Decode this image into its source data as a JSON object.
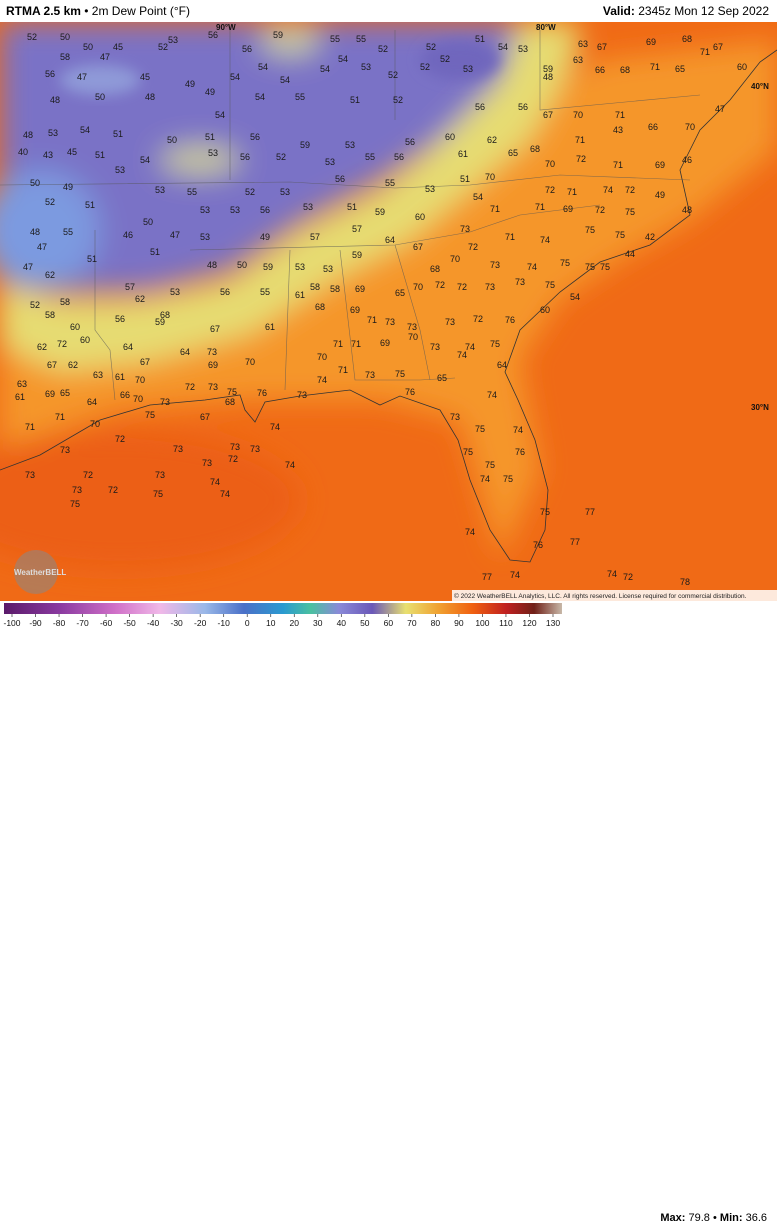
{
  "header": {
    "model": "RTMA 2.5 km",
    "separator": "•",
    "field": "2m Dew Point (°F)",
    "valid_label": "Valid:",
    "valid_time": "2345z Mon 12 Sep 2022"
  },
  "stats": {
    "max_label": "Max:",
    "max": 79.8,
    "min_label": "Min:",
    "min": 36.6
  },
  "map_labels": {
    "lon_90": "90°W",
    "lon_80": "80°W",
    "lat_40": "40°N",
    "lat_30": "30°N"
  },
  "logo": "WeatherBELL",
  "copyright": "© 2022 WeatherBELL Analytics, LLC. All rights reserved. License required for commercial distribution.",
  "colorbar": {
    "lim": [
      -100,
      130
    ],
    "ticks": [
      -100,
      -90,
      -80,
      -70,
      -60,
      -50,
      -40,
      -30,
      -20,
      -10,
      0,
      10,
      20,
      30,
      40,
      50,
      60,
      70,
      80,
      90,
      100,
      110,
      120,
      130
    ]
  },
  "stations": [
    52,
    50,
    50,
    45,
    52,
    53,
    56,
    56,
    59,
    55,
    55,
    52,
    52,
    51,
    54,
    53,
    63,
    67,
    69,
    68,
    67,
    58,
    47,
    56,
    47,
    45,
    49,
    49,
    54,
    54,
    54,
    54,
    54,
    53,
    52,
    52,
    52,
    53,
    59,
    63,
    66,
    68,
    71,
    65,
    71,
    60,
    48,
    48,
    50,
    48,
    54,
    54,
    55,
    51,
    52,
    56,
    56,
    67,
    70,
    71,
    66,
    70,
    47,
    48,
    53,
    54,
    51,
    50,
    51,
    56,
    59,
    53,
    56,
    60,
    62,
    68,
    71,
    43,
    40,
    43,
    45,
    51,
    54,
    53,
    56,
    52,
    53,
    55,
    56,
    61,
    65,
    70,
    72,
    71,
    69,
    46,
    50,
    49,
    53,
    53,
    55,
    52,
    53,
    56,
    55,
    53,
    51,
    70,
    72,
    71,
    74,
    72,
    49,
    52,
    51,
    53,
    53,
    56,
    53,
    51,
    59,
    60,
    54,
    71,
    71,
    69,
    72,
    75,
    48,
    48,
    55,
    46,
    50,
    47,
    53,
    49,
    57,
    57,
    64,
    73,
    71,
    74,
    75,
    75,
    42,
    47,
    51,
    51,
    48,
    50,
    59,
    53,
    53,
    59,
    67,
    68,
    70,
    72,
    73,
    74,
    75,
    75,
    75,
    44,
    47,
    62,
    57,
    62,
    53,
    56,
    55,
    61,
    58,
    58,
    69,
    65,
    70,
    72,
    72,
    73,
    73,
    75,
    54,
    52,
    58,
    58,
    60,
    56,
    59,
    68,
    67,
    61,
    68,
    69,
    71,
    73,
    73,
    73,
    72,
    76,
    60,
    62,
    72,
    60,
    64,
    64,
    73,
    70,
    70,
    71,
    71,
    69,
    70,
    73,
    74,
    74,
    75,
    64,
    63,
    61,
    67,
    62,
    63,
    61,
    70,
    67,
    69,
    72,
    73,
    75,
    76,
    73,
    74,
    71,
    73,
    75,
    65,
    69,
    65,
    64,
    66,
    70,
    73,
    68,
    71,
    75,
    67,
    71,
    70,
    72,
    73,
    73,
    74,
    76,
    73,
    74,
    75,
    74,
    73,
    73,
    72,
    74,
    73,
    73,
    72,
    73,
    74,
    73,
    72,
    75,
    74,
    75,
    75,
    75,
    74,
    75,
    76,
    74,
    75,
    77,
    77,
    77,
    74,
    74,
    72,
    78,
    76
  ]
}
